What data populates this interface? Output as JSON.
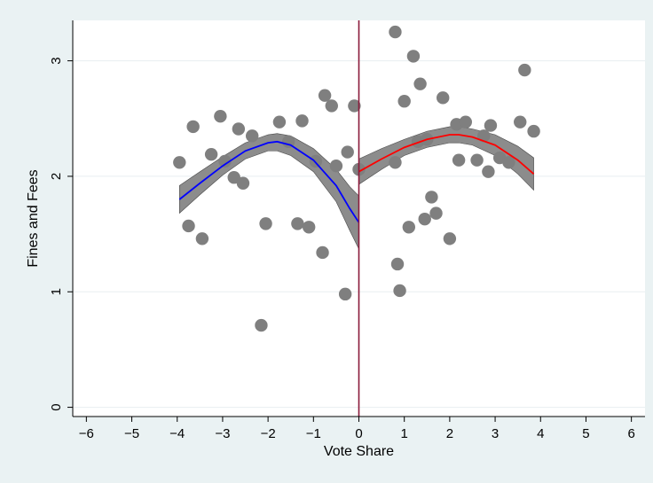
{
  "chart_data": {
    "type": "scatter",
    "title": "",
    "xlabel": "Vote Share",
    "ylabel": "Fines and Fees",
    "xlim": [
      -6.3,
      6.3
    ],
    "ylim": [
      -0.08,
      3.35
    ],
    "xticks": [
      -6,
      -5,
      -4,
      -3,
      -2,
      -1,
      0,
      1,
      2,
      3,
      4,
      5,
      6
    ],
    "yticks": [
      0,
      1,
      2,
      3
    ],
    "grid": "horizontal",
    "legend": "none",
    "cutoff": {
      "x": 0,
      "color": "#8b1a3b"
    },
    "colors": {
      "background": "#eaf2f3",
      "plot_area": "#ffffff",
      "points": "#7f7f7f",
      "ci_band": "#8c8c8c",
      "left_fit": "#0000ff",
      "right_fit": "#ff0000"
    },
    "scatter": [
      {
        "x": -3.95,
        "y": 2.12
      },
      {
        "x": -3.75,
        "y": 1.57
      },
      {
        "x": -3.65,
        "y": 2.43
      },
      {
        "x": -3.45,
        "y": 1.46
      },
      {
        "x": -3.25,
        "y": 2.19
      },
      {
        "x": -3.05,
        "y": 2.52
      },
      {
        "x": -2.95,
        "y": 2.13
      },
      {
        "x": -2.75,
        "y": 1.99
      },
      {
        "x": -2.65,
        "y": 2.41
      },
      {
        "x": -2.55,
        "y": 1.94
      },
      {
        "x": -2.35,
        "y": 2.35
      },
      {
        "x": -2.15,
        "y": 0.71
      },
      {
        "x": -2.05,
        "y": 1.59
      },
      {
        "x": -1.75,
        "y": 2.47
      },
      {
        "x": -1.55,
        "y": 2.3
      },
      {
        "x": -1.35,
        "y": 1.59
      },
      {
        "x": -1.25,
        "y": 2.48
      },
      {
        "x": -1.1,
        "y": 1.56
      },
      {
        "x": -0.95,
        "y": 2.13
      },
      {
        "x": -0.8,
        "y": 1.34
      },
      {
        "x": -0.75,
        "y": 2.7
      },
      {
        "x": -0.6,
        "y": 2.61
      },
      {
        "x": -0.5,
        "y": 2.09
      },
      {
        "x": -0.3,
        "y": 0.98
      },
      {
        "x": -0.25,
        "y": 2.21
      },
      {
        "x": -0.1,
        "y": 2.61
      },
      {
        "x": 0.0,
        "y": 2.06
      },
      {
        "x": 0.8,
        "y": 3.25
      },
      {
        "x": 0.8,
        "y": 2.12
      },
      {
        "x": 0.85,
        "y": 1.24
      },
      {
        "x": 0.9,
        "y": 1.01
      },
      {
        "x": 1.0,
        "y": 2.65
      },
      {
        "x": 1.1,
        "y": 1.56
      },
      {
        "x": 1.2,
        "y": 3.04
      },
      {
        "x": 1.3,
        "y": 2.3
      },
      {
        "x": 1.35,
        "y": 2.8
      },
      {
        "x": 1.45,
        "y": 1.63
      },
      {
        "x": 1.5,
        "y": 2.32
      },
      {
        "x": 1.6,
        "y": 1.82
      },
      {
        "x": 1.7,
        "y": 1.68
      },
      {
        "x": 1.85,
        "y": 2.68
      },
      {
        "x": 2.0,
        "y": 1.46
      },
      {
        "x": 2.15,
        "y": 2.45
      },
      {
        "x": 2.2,
        "y": 2.14
      },
      {
        "x": 2.35,
        "y": 2.47
      },
      {
        "x": 2.6,
        "y": 2.14
      },
      {
        "x": 2.75,
        "y": 2.35
      },
      {
        "x": 2.85,
        "y": 2.04
      },
      {
        "x": 2.9,
        "y": 2.44
      },
      {
        "x": 3.1,
        "y": 2.16
      },
      {
        "x": 3.3,
        "y": 2.12
      },
      {
        "x": 3.55,
        "y": 2.47
      },
      {
        "x": 3.65,
        "y": 2.92
      },
      {
        "x": 3.85,
        "y": 2.39
      }
    ],
    "fits": [
      {
        "side": "left",
        "x": [
          -3.95,
          -3.5,
          -3.0,
          -2.5,
          -2.0,
          -1.8,
          -1.5,
          -1.0,
          -0.5,
          -0.2,
          0.0
        ],
        "y": [
          1.8,
          1.94,
          2.09,
          2.22,
          2.29,
          2.3,
          2.27,
          2.14,
          1.92,
          1.72,
          1.6
        ],
        "lo": [
          1.68,
          1.84,
          2.01,
          2.15,
          2.22,
          2.22,
          2.18,
          2.04,
          1.78,
          1.53,
          1.37
        ],
        "hi": [
          1.92,
          2.04,
          2.17,
          2.29,
          2.36,
          2.37,
          2.35,
          2.24,
          2.06,
          1.91,
          1.83
        ]
      },
      {
        "side": "right",
        "x": [
          0.0,
          0.5,
          1.0,
          1.5,
          2.0,
          2.2,
          2.5,
          3.0,
          3.5,
          3.85
        ],
        "y": [
          2.04,
          2.15,
          2.25,
          2.32,
          2.36,
          2.36,
          2.34,
          2.27,
          2.14,
          2.02
        ],
        "lo": [
          1.93,
          2.06,
          2.18,
          2.25,
          2.29,
          2.29,
          2.27,
          2.18,
          2.02,
          1.88
        ],
        "hi": [
          2.15,
          2.24,
          2.32,
          2.39,
          2.43,
          2.43,
          2.41,
          2.36,
          2.26,
          2.16
        ]
      }
    ]
  }
}
